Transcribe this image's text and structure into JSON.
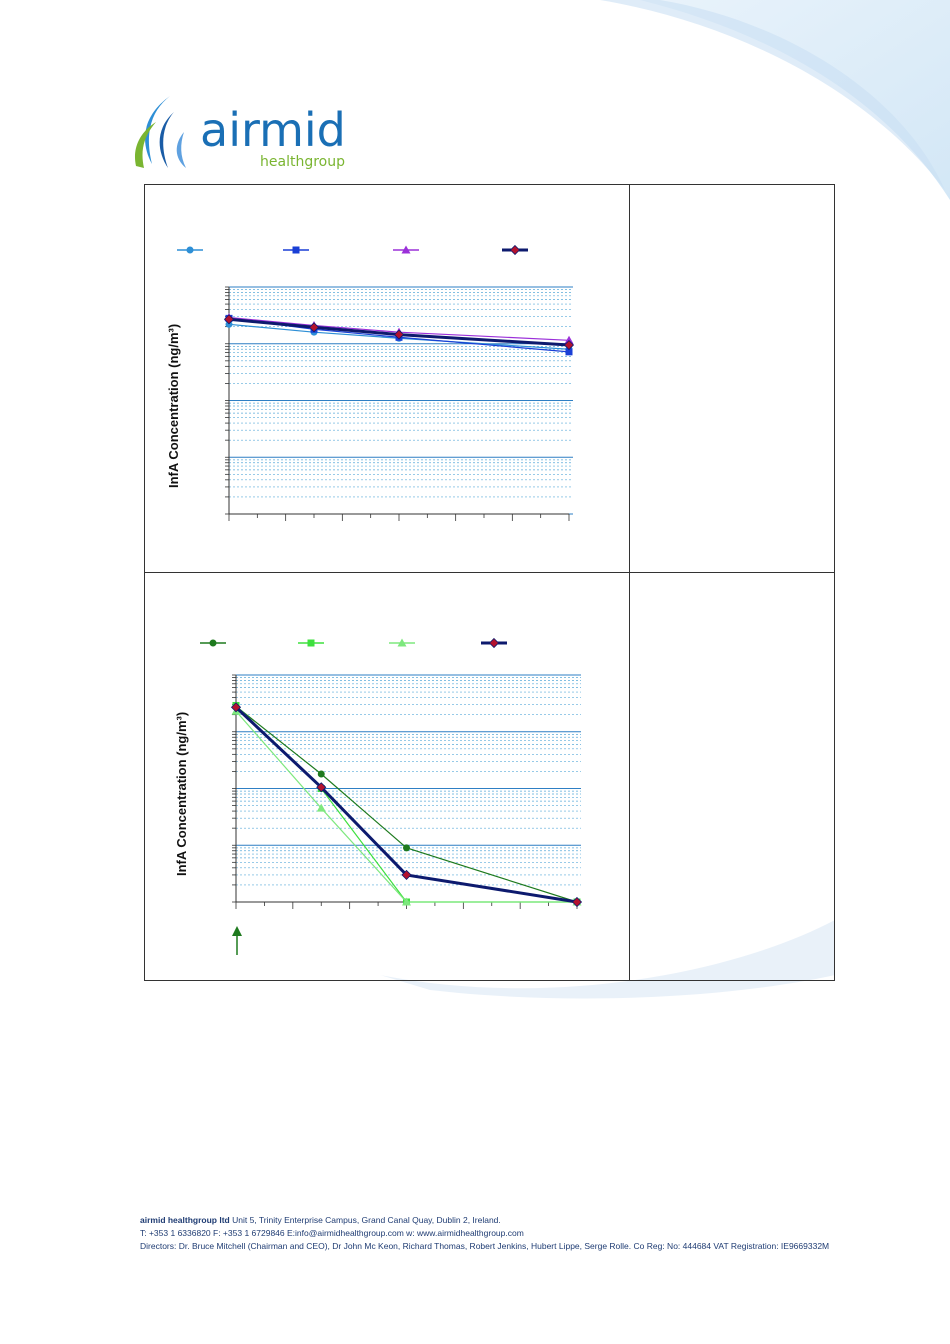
{
  "logo": {
    "name": "airmid",
    "tagline": "healthgroup"
  },
  "chart_data": [
    {
      "type": "line",
      "ylabel": "InfA Concentration (ng/m³)",
      "yscale": "log",
      "grid": true,
      "legend_placement": "top",
      "x": [
        0,
        1,
        2,
        4
      ],
      "series": [
        {
          "color": "#2e8fd6",
          "marker": "circle",
          "values": [
            22.0,
            16.0,
            12.5,
            8.0
          ]
        },
        {
          "color": "#1a3fd6",
          "marker": "square",
          "values": [
            28.0,
            18.0,
            13.0,
            7.2
          ]
        },
        {
          "color": "#9b30d9",
          "marker": "triangle",
          "values": [
            29.0,
            21.0,
            16.0,
            11.5
          ]
        },
        {
          "color": "#0d1a6e",
          "marker": "diamond",
          "values": [
            27.0,
            19.5,
            14.5,
            9.5
          ],
          "thick": true
        }
      ],
      "ylim": [
        0.01,
        100
      ]
    },
    {
      "type": "line",
      "ylabel": "InfA Concentration (ng/m³)",
      "yscale": "log",
      "grid": true,
      "legend_placement": "top",
      "x": [
        0,
        1,
        2,
        4
      ],
      "series": [
        {
          "color": "#1e7a1e",
          "marker": "circle",
          "values": [
            28.0,
            1.8,
            0.09,
            0.01
          ]
        },
        {
          "color": "#3ee03e",
          "marker": "square",
          "values": [
            29.0,
            1.0,
            0.01,
            0.01
          ]
        },
        {
          "color": "#7ee87e",
          "marker": "triangle",
          "values": [
            23.0,
            0.45,
            0.01,
            0.01
          ]
        },
        {
          "color": "#0d1a6e",
          "marker": "diamond",
          "values": [
            27.0,
            1.05,
            0.03,
            0.01
          ],
          "thick": true
        }
      ],
      "ylim": [
        0.01,
        100
      ]
    }
  ],
  "footer": {
    "company": "airmid healthgroup ltd",
    "address": "Unit 5, Trinity Enterprise Campus, Grand Canal Quay, Dublin 2, Ireland.",
    "contact": "T: +353 1 6336820 F: +353 1 6729846 E:info@airmidhealthgroup.com w: www.airmidhealthgroup.com",
    "directors": "Directors: Dr. Bruce Mitchell (Chairman and CEO), Dr John Mc Keon, Richard Thomas, Robert Jenkins, Hubert Lippe, Serge Rolle. Co Reg: No: 444684 VAT Registration: IE9669332M"
  }
}
